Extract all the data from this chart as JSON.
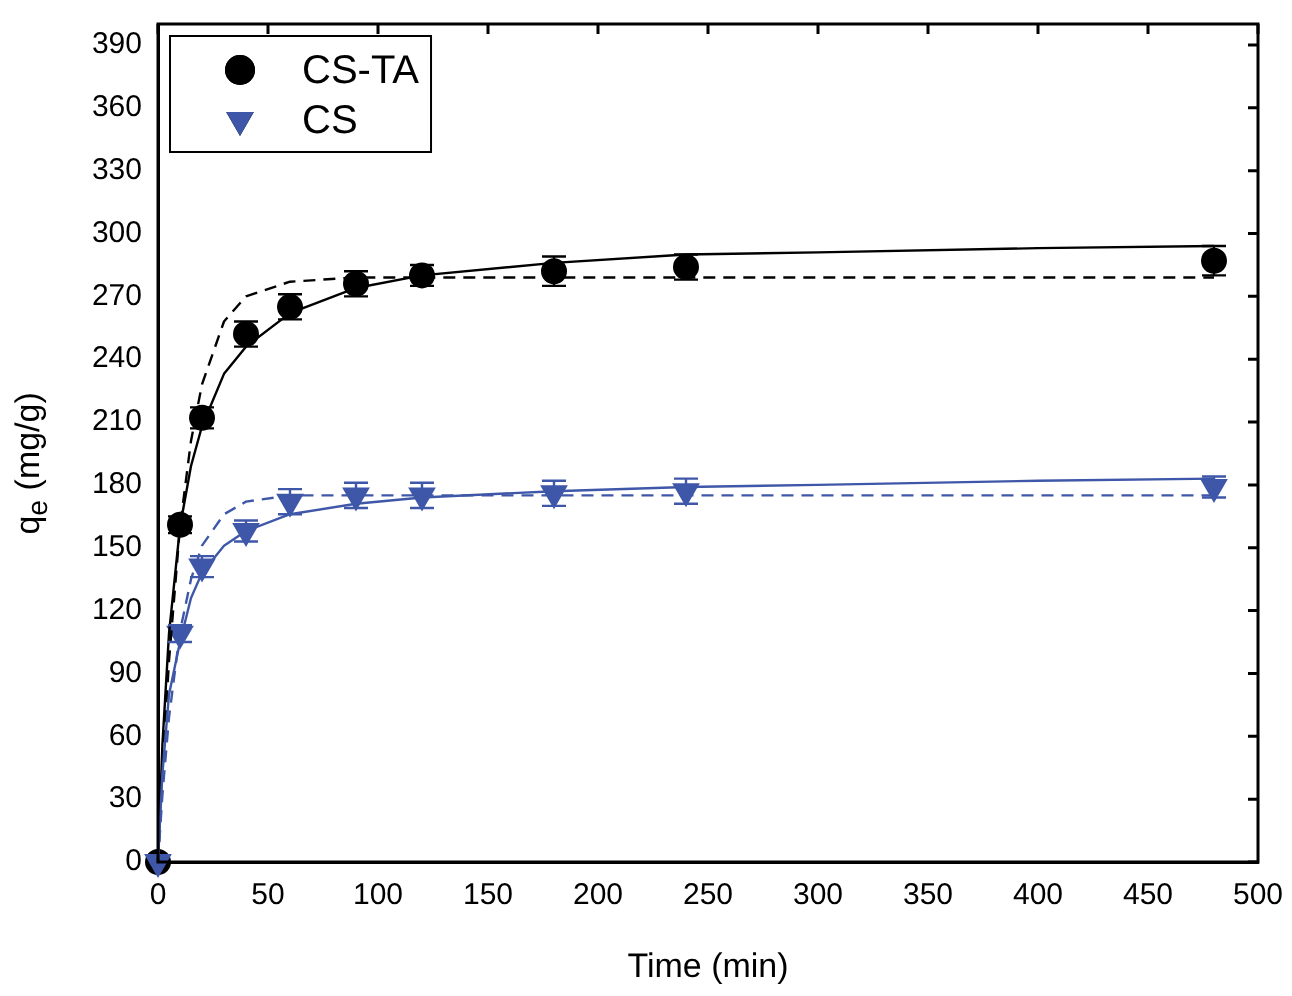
{
  "chart_data": {
    "type": "scatter",
    "xlabel": "Time (min)",
    "ylabel": "q$_{e}$ (mg/g)",
    "xlim": [
      0,
      500
    ],
    "xticks": [
      0,
      50,
      100,
      150,
      200,
      250,
      300,
      350,
      400,
      450,
      500
    ],
    "ylim": [
      0,
      400
    ],
    "yticks": [
      0,
      30,
      60,
      90,
      120,
      150,
      180,
      210,
      240,
      270,
      300,
      330,
      360,
      390
    ],
    "grid": false,
    "legend": "top left",
    "series": [
      {
        "name": "CS-TA",
        "marker": "circle",
        "color": "#000000",
        "x": [
          0,
          10,
          20,
          40,
          60,
          90,
          120,
          180,
          240,
          480
        ],
        "values": [
          0,
          161,
          212,
          252,
          265,
          276,
          280,
          282,
          284,
          287
        ],
        "errors": [
          null,
          4,
          5,
          6,
          6,
          6,
          5,
          7,
          6,
          7
        ]
      },
      {
        "name": "CS",
        "marker": "triangle",
        "color": "#3f57a8",
        "x": [
          0,
          10,
          20,
          40,
          60,
          90,
          120,
          180,
          240,
          480
        ],
        "values": [
          0,
          109,
          141,
          158,
          172,
          175,
          175,
          176,
          177,
          179
        ],
        "errors": [
          null,
          4,
          5,
          5,
          6,
          6,
          6,
          6,
          6,
          5
        ]
      },
      {
        "type": "line",
        "marker": "none",
        "line_style": "solid",
        "color": "#000000",
        "x": [
          0,
          2,
          5,
          10,
          15,
          20,
          30,
          40,
          60,
          90,
          120,
          180,
          240,
          300,
          400,
          480
        ],
        "values": [
          0,
          56,
          109,
          160,
          189,
          208,
          233,
          246,
          262,
          274,
          280,
          286,
          290,
          291,
          293,
          294
        ]
      },
      {
        "type": "line",
        "marker": "none",
        "line_style": "dashed",
        "color": "#000000",
        "x": [
          0,
          2,
          5,
          10,
          15,
          20,
          30,
          40,
          60,
          90,
          120,
          180,
          240,
          300,
          400,
          480
        ],
        "values": [
          0,
          43,
          96,
          160,
          201,
          228,
          258,
          270,
          277,
          279,
          279,
          279,
          279,
          279,
          279,
          279
        ]
      },
      {
        "type": "line",
        "marker": "none",
        "line_style": "solid",
        "color": "#3f57a8",
        "x": [
          0,
          2,
          5,
          10,
          15,
          20,
          30,
          40,
          60,
          90,
          120,
          180,
          240,
          300,
          400,
          480
        ],
        "values": [
          0,
          42,
          80,
          105,
          126,
          138,
          151,
          158,
          166,
          171,
          174,
          177,
          179,
          180,
          182,
          183
        ]
      },
      {
        "type": "line",
        "marker": "none",
        "line_style": "dashed",
        "color": "#3f57a8",
        "x": [
          0,
          2,
          5,
          10,
          15,
          20,
          30,
          40,
          60,
          90,
          120,
          180,
          240,
          300,
          400,
          480
        ],
        "values": [
          0,
          32,
          69,
          110,
          135,
          151,
          166,
          172,
          175,
          175,
          175,
          175,
          175,
          175,
          175,
          175
        ]
      }
    ]
  }
}
